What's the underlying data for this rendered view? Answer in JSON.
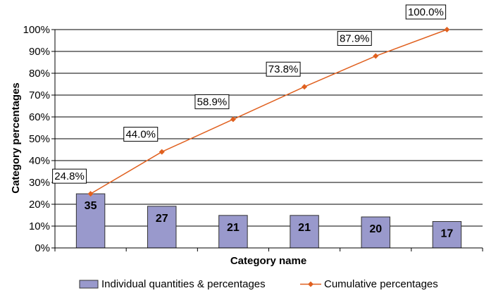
{
  "chart_data": {
    "type": "bar",
    "categories": [
      "",
      "",
      "",
      "",
      "",
      ""
    ],
    "xlabel": "Category name",
    "ylabel": "Category percentages",
    "ylim": [
      0,
      100
    ],
    "y_ticks": [
      "0%",
      "10%",
      "20%",
      "30%",
      "40%",
      "50%",
      "60%",
      "70%",
      "80%",
      "90%",
      "100%"
    ],
    "grid": true,
    "legend_position": "bottom",
    "series": [
      {
        "name": "Individual quantities & percentages",
        "type": "bar",
        "color": "#9999cc",
        "counts": [
          35,
          27,
          21,
          21,
          20,
          17
        ],
        "values": [
          24.8,
          19.1,
          14.9,
          14.9,
          14.2,
          12.1
        ],
        "labels": [
          "35",
          "27",
          "21",
          "21",
          "20",
          "17"
        ]
      },
      {
        "name": "Cumulative percentages",
        "type": "line",
        "color": "#e0601f",
        "values": [
          24.8,
          44.0,
          58.9,
          73.8,
          87.9,
          100.0
        ],
        "labels": [
          "24.8%",
          "44.0%",
          "58.9%",
          "73.8%",
          "87.9%",
          "100.0%"
        ]
      }
    ]
  }
}
